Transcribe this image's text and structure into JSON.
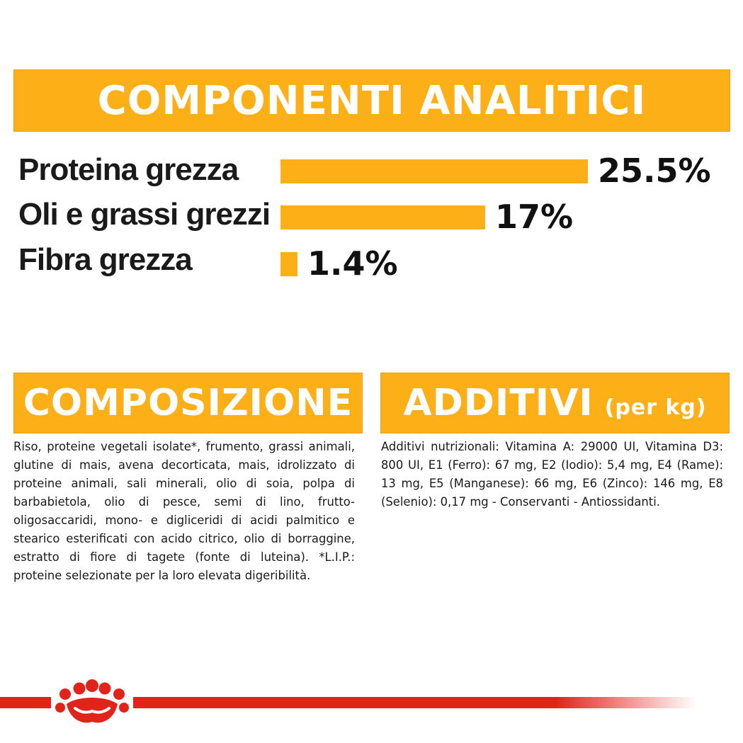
{
  "analitici": {
    "title": "COMPONENTI ANALITICI",
    "color": "#fcaf17",
    "rows": [
      {
        "label": "Proteina grezza",
        "value": "25.5%",
        "amount": 25.5
      },
      {
        "label": "Oli e grassi grezzi",
        "value": "17%",
        "amount": 17
      },
      {
        "label": "Fibra grezza",
        "value": "1.4%",
        "amount": 1.4
      }
    ]
  },
  "composizione": {
    "title": "COMPOSIZIONE",
    "text": "Riso, proteine vegetali isolate*, frumento, grassi animali, glutine di mais, avena decorticata, mais, idrolizzato di proteine animali, sali minerali, olio di soia, polpa di barbabietola, olio di pesce, semi di lino, frutto-oligosaccaridi, mono- e digliceridi di acidi palmitico e stearico esterificati con acido citrico, olio di borraggine, estratto di fiore di tagete (fonte di luteina). *L.I.P.: proteine selezionate per la loro elevata digeribilità."
  },
  "additivi": {
    "title": "ADDITIVI",
    "title_suffix": "(per kg)",
    "text": "Additivi nutrizionali: Vitamina A: 29000 UI, Vitamina D3: 800 UI, E1 (Ferro): 67 mg, E2 (Iodio): 5,4 mg, E4 (Rame): 13 mg, E5 (Manganese): 66 mg, E6 (Zinco): 146 mg, E8 (Selenio): 0,17 mg - Conservanti - Antiossidanti."
  },
  "footer": {
    "logo_icon": "royal-canin-crown-icon",
    "accent_color": "#e2231a"
  }
}
